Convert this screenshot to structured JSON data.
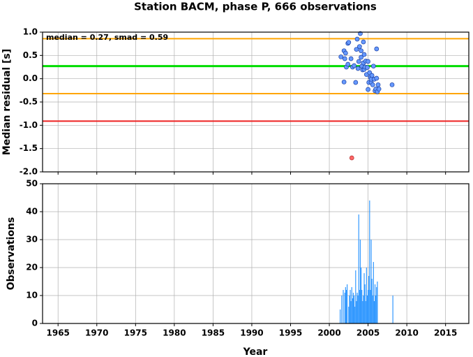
{
  "chart_data": [
    {
      "type": "scatter",
      "title": "Station BACM, phase P, 666 observations",
      "ylabel": "Median residual [s]",
      "annotation": "median = 0.27, smad = 0.59",
      "xlim": [
        1963,
        2018
      ],
      "ylim": [
        -2,
        1
      ],
      "yticks": [
        {
          "value": 1,
          "label": "1.0"
        },
        0.5,
        {
          "value": 0,
          "label": "0.0"
        },
        -0.5,
        {
          "value": -1,
          "label": "-1.0"
        },
        -1.5,
        {
          "value": -2,
          "label": "-2.0"
        }
      ],
      "grid": true,
      "hlines": [
        {
          "value": 0.86,
          "color": "#ffa500"
        },
        {
          "value": 0.27,
          "color": "#00dd00"
        },
        {
          "value": -0.32,
          "color": "#ffa500"
        },
        {
          "value": -0.91,
          "color": "#ee2222"
        }
      ],
      "series": [
        {
          "color": "#6699ff",
          "x": [
            2001.5,
            2001.9,
            2002.1,
            2002.0,
            2001.9,
            2002.2,
            2002.4,
            2002.5,
            2002.4,
            2002.8,
            2003.0,
            2003.2,
            2003.4,
            2003.5,
            2003.6,
            2003.7,
            2003.8,
            2003.9,
            2004.0,
            2004.1,
            2004.1,
            2004.2,
            2004.3,
            2004.4,
            2004.4,
            2004.5,
            2004.5,
            2004.6,
            2004.7,
            2004.8,
            2004.9,
            2005.0,
            2005.0,
            2005.1,
            2005.2,
            2005.3,
            2005.4,
            2005.4,
            2005.5,
            2005.6,
            2005.7,
            2005.8,
            2005.9,
            2006.0,
            2006.1,
            2006.1,
            2006.2,
            2006.3,
            2006.4,
            2008.1
          ],
          "values": [
            0.47,
            0.6,
            0.55,
            0.43,
            -0.07,
            0.25,
            0.76,
            0.78,
            0.31,
            0.43,
            0.25,
            0.28,
            -0.08,
            0.63,
            0.85,
            0.22,
            0.37,
            0.69,
            0.97,
            0.46,
            0.6,
            0.27,
            0.19,
            0.34,
            0.79,
            0.52,
            0.2,
            0.25,
            0.38,
            0.09,
            0.24,
            0.37,
            -0.23,
            -0.08,
            0.13,
            0.03,
            -0.08,
            -0.01,
            0.07,
            -0.13,
            0.27,
            -0.01,
            -0.26,
            -0.22,
            0.64,
            0.01,
            -0.28,
            -0.13,
            -0.22,
            -0.13
          ]
        },
        {
          "color": "#ff6666",
          "x": [
            2002.9
          ],
          "values": [
            -1.7
          ]
        }
      ]
    },
    {
      "type": "bar",
      "ylabel": "Observations",
      "xlabel": "Year",
      "color": "#3399ff",
      "xlim": [
        1963,
        2018
      ],
      "xticks": [
        1965,
        1970,
        1975,
        1980,
        1985,
        1990,
        1995,
        2000,
        2005,
        2010,
        2015
      ],
      "ylim": [
        0,
        50
      ],
      "yticks": [
        0,
        10,
        20,
        30,
        40,
        50
      ],
      "grid": true,
      "x": [
        2001.4,
        2001.6,
        2001.8,
        2002.0,
        2002.1,
        2002.2,
        2002.3,
        2002.5,
        2002.6,
        2002.7,
        2002.8,
        2002.9,
        2003.0,
        2003.1,
        2003.2,
        2003.3,
        2003.4,
        2003.5,
        2003.6,
        2003.7,
        2003.8,
        2003.9,
        2004.0,
        2004.1,
        2004.2,
        2004.3,
        2004.4,
        2004.5,
        2004.6,
        2004.7,
        2004.8,
        2004.9,
        2005.0,
        2005.1,
        2005.2,
        2005.3,
        2005.4,
        2005.5,
        2005.6,
        2005.7,
        2005.8,
        2005.9,
        2006.0,
        2006.1,
        2006.2,
        2008.2
      ],
      "values": [
        5,
        10,
        12,
        11,
        13,
        12,
        14,
        6,
        10,
        12,
        8,
        13,
        9,
        11,
        10,
        6,
        19,
        8,
        11,
        10,
        39,
        12,
        30,
        20,
        12,
        8,
        10,
        18,
        14,
        8,
        20,
        10,
        12,
        17,
        44,
        12,
        30,
        16,
        10,
        22,
        8,
        14,
        10,
        13,
        15,
        10
      ]
    }
  ]
}
